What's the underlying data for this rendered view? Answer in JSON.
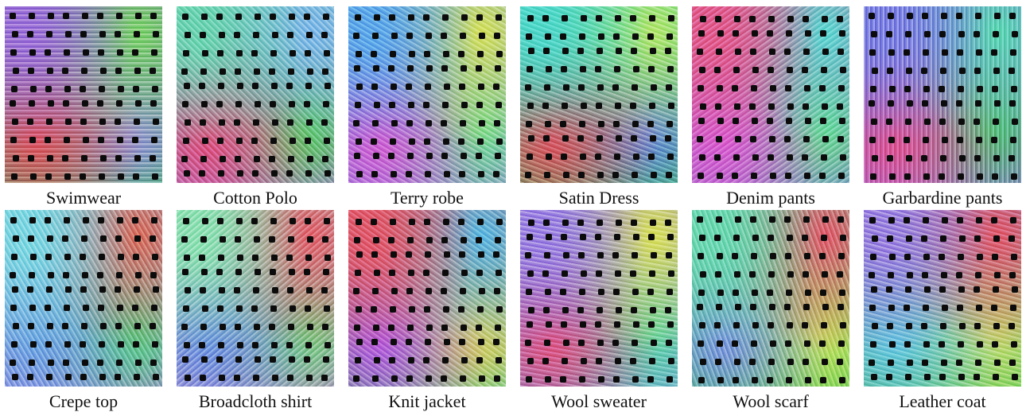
{
  "panels": [
    {
      "label": "Swimwear",
      "texture": "fine-horizontal",
      "colors": [
        "#9b6fd8",
        "#7ad06a",
        "#e0505a",
        "#9a8fe0",
        "#3fbf5a"
      ]
    },
    {
      "label": "Cotton Polo",
      "texture": "knit-bumps",
      "colors": [
        "#6bd4b0",
        "#7bb7e8",
        "#e04a78",
        "#58cf5a",
        "#b06be0"
      ]
    },
    {
      "label": "Terry robe",
      "texture": "loops",
      "colors": [
        "#5ba6e8",
        "#d3e05a",
        "#d45ad0",
        "#6ee08a",
        "#9a88e0"
      ]
    },
    {
      "label": "Satin Dress",
      "texture": "smooth-folds",
      "colors": [
        "#4fd6c8",
        "#b1e46a",
        "#e04a5a",
        "#6a7fe0",
        "#3fc35a"
      ]
    },
    {
      "label": "Denim pants",
      "texture": "twill-diagonal",
      "colors": [
        "#e05a8a",
        "#5ad6d0",
        "#d85ad0",
        "#62e08a",
        "#8a7fe0"
      ]
    },
    {
      "label": "Garbardine pants",
      "texture": "vertical-ribs",
      "colors": [
        "#7a7fe0",
        "#5ad6b0",
        "#e0508a",
        "#4fbf6a",
        "#9a70e0"
      ]
    },
    {
      "label": "Crepe top",
      "texture": "crinkle-diagonal",
      "colors": [
        "#7ad6e0",
        "#d66a5a",
        "#6a9fe0",
        "#4fd07a",
        "#b07ae0"
      ]
    },
    {
      "label": "Broadcloth shirt",
      "texture": "fine-diagonal",
      "colors": [
        "#8ae0b0",
        "#e0606a",
        "#6a8fe0",
        "#6fd37a",
        "#c27ad8"
      ]
    },
    {
      "label": "Knit jacket",
      "texture": "chevron-knit",
      "colors": [
        "#e0586a",
        "#5ab6e0",
        "#b05ae0",
        "#e0d05a",
        "#4fc8a0"
      ]
    },
    {
      "label": "Wool sweater",
      "texture": "coarse-weave",
      "colors": [
        "#9a7fe0",
        "#d8e05a",
        "#e0507a",
        "#5ad6a0",
        "#7a9fe0"
      ]
    },
    {
      "label": "Wool scarf",
      "texture": "fuzzy-cells",
      "colors": [
        "#6ad6b0",
        "#e05a6a",
        "#7a8fe0",
        "#c8e05a",
        "#4fc85a"
      ]
    },
    {
      "label": "Leather coat",
      "texture": "creased-smooth",
      "colors": [
        "#9a7fe0",
        "#e0586a",
        "#62c8e0",
        "#c8e06a",
        "#4fc85a"
      ]
    }
  ]
}
